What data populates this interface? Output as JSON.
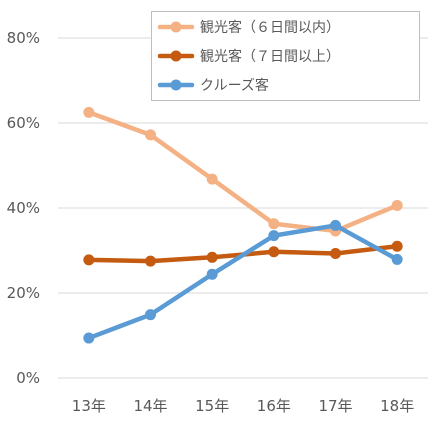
{
  "chart_data": {
    "type": "line",
    "categories": [
      "13年",
      "14年",
      "15年",
      "16年",
      "17年",
      "18年"
    ],
    "ylim": [
      0,
      80
    ],
    "yticks": [
      0,
      20,
      40,
      60,
      80
    ],
    "ytick_labels": [
      "0%",
      "20%",
      "40%",
      "60%",
      "80%"
    ],
    "grid": true,
    "legend_position": "top-right",
    "series": [
      {
        "name": "観光客（６日間以内）",
        "color": "#F4B183",
        "values": [
          62.5,
          57.2,
          46.8,
          36.3,
          34.6,
          40.6
        ]
      },
      {
        "name": "観光客（７日間以上）",
        "color": "#C55A11",
        "values": [
          27.8,
          27.5,
          28.4,
          29.7,
          29.3,
          31.0
        ]
      },
      {
        "name": "クルーズ客",
        "color": "#5B9BD5",
        "values": [
          9.4,
          14.9,
          24.4,
          33.5,
          35.9,
          27.9
        ]
      }
    ]
  }
}
